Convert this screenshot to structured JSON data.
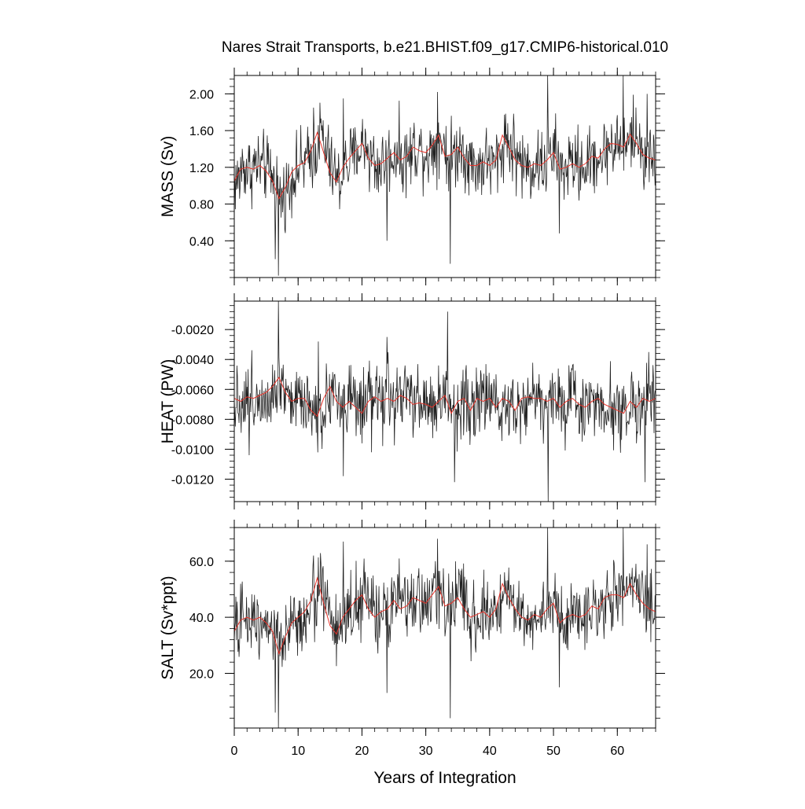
{
  "figure": {
    "title": "Nares Strait Transports, b.e21.BHIST.f09_g17.CMIP6-historical.010",
    "xlabel": "Years of Integration"
  },
  "colors": {
    "raw_line": "#222222",
    "smooth_line": "#e8332a",
    "axis": "#000000",
    "background": "#ffffff"
  },
  "chart_data": [
    {
      "type": "line",
      "panel": "mass",
      "title": "",
      "xlabel": "",
      "ylabel": "MASS (Sv)",
      "xlim": [
        0,
        66
      ],
      "ylim": [
        0,
        2.2
      ],
      "x_ticks": [
        0,
        10,
        20,
        30,
        40,
        50,
        60
      ],
      "x_tick_labels": [
        "",
        "",
        "",
        "",
        "",
        "",
        ""
      ],
      "y_ticks": [
        0.4,
        0.8,
        1.2,
        1.6,
        2.0
      ],
      "y_tick_labels": [
        "0.40",
        "0.80",
        "1.20",
        "1.60",
        "2.00"
      ],
      "monthly": {
        "start_year": 0,
        "step_years": 0.0833333,
        "base": [
          1.05,
          1.2,
          1.18,
          1.22,
          1.2,
          1.15,
          1.05,
          0.88,
          0.98,
          1.15,
          1.22,
          1.26,
          1.35,
          1.55,
          1.35,
          1.15,
          1.05,
          1.22,
          1.3,
          1.4,
          1.45,
          1.3,
          1.2,
          1.25,
          1.3,
          1.38,
          1.28,
          1.32,
          1.42,
          1.38,
          1.36,
          1.45,
          1.52,
          1.32,
          1.35,
          1.42,
          1.32,
          1.22,
          1.22,
          1.28,
          1.22,
          1.3,
          1.52,
          1.42,
          1.3,
          1.22,
          1.2,
          1.25,
          1.22,
          1.3,
          1.35,
          1.18,
          1.22,
          1.25,
          1.2,
          1.24,
          1.32,
          1.3,
          1.42,
          1.45,
          1.44,
          1.42,
          1.55,
          1.45,
          1.32,
          1.3
        ],
        "amplitude": 0.28,
        "spikes": [
          [
            6.4,
            0.2
          ],
          [
            6.9,
            0.02
          ],
          [
            12.4,
            1.85
          ],
          [
            17.1,
            1.95
          ],
          [
            23.9,
            0.4
          ],
          [
            31.8,
            2.02
          ],
          [
            33.8,
            0.15
          ],
          [
            49.1,
            2.2
          ],
          [
            50.9,
            0.48
          ],
          [
            60.9,
            2.2
          ],
          [
            64.7,
            2.0
          ]
        ]
      },
      "smooth": {
        "x": [
          0,
          1,
          2,
          3,
          4,
          5,
          6,
          7,
          8,
          9,
          10,
          11,
          12,
          13,
          14,
          15,
          16,
          17,
          18,
          19,
          20,
          21,
          22,
          23,
          24,
          25,
          26,
          27,
          28,
          29,
          30,
          31,
          32,
          33,
          34,
          35,
          36,
          37,
          38,
          39,
          40,
          41,
          42,
          43,
          44,
          45,
          46,
          47,
          48,
          49,
          50,
          51,
          52,
          53,
          54,
          55,
          56,
          57,
          58,
          59,
          60,
          61,
          62,
          63,
          64,
          65,
          66
        ],
        "y": [
          1.05,
          1.18,
          1.2,
          1.18,
          1.22,
          1.16,
          1.05,
          0.86,
          0.98,
          1.15,
          1.22,
          1.25,
          1.38,
          1.58,
          1.36,
          1.14,
          1.04,
          1.2,
          1.3,
          1.38,
          1.46,
          1.3,
          1.22,
          1.24,
          1.3,
          1.36,
          1.28,
          1.32,
          1.42,
          1.38,
          1.36,
          1.44,
          1.55,
          1.32,
          1.34,
          1.42,
          1.3,
          1.22,
          1.22,
          1.26,
          1.22,
          1.28,
          1.55,
          1.42,
          1.28,
          1.22,
          1.2,
          1.24,
          1.22,
          1.28,
          1.36,
          1.18,
          1.2,
          1.24,
          1.2,
          1.24,
          1.32,
          1.3,
          1.4,
          1.46,
          1.45,
          1.42,
          1.56,
          1.46,
          1.34,
          1.3,
          1.28
        ]
      }
    },
    {
      "type": "line",
      "panel": "heat",
      "title": "",
      "xlabel": "",
      "ylabel": "HEAT (PW)",
      "xlim": [
        0,
        66
      ],
      "ylim": [
        -0.0135,
        -0.0001
      ],
      "x_ticks": [
        0,
        10,
        20,
        30,
        40,
        50,
        60
      ],
      "x_tick_labels": [
        "",
        "",
        "",
        "",
        "",
        "",
        ""
      ],
      "y_ticks": [
        -0.012,
        -0.01,
        -0.008,
        -0.006,
        -0.004,
        -0.002
      ],
      "y_tick_labels": [
        "-0.0120",
        "-0.0100",
        "-0.0080",
        "-0.0060",
        "-0.0040",
        "-0.0020"
      ],
      "monthly": {
        "start_year": 0,
        "step_years": 0.0833333,
        "base": [
          -0.0066,
          -0.0068,
          -0.0065,
          -0.0066,
          -0.0064,
          -0.0062,
          -0.0058,
          -0.0052,
          -0.0062,
          -0.0068,
          -0.0066,
          -0.0066,
          -0.0074,
          -0.0078,
          -0.0066,
          -0.0058,
          -0.0068,
          -0.0072,
          -0.0068,
          -0.0072,
          -0.0076,
          -0.0068,
          -0.0065,
          -0.0068,
          -0.0066,
          -0.0068,
          -0.0064,
          -0.0066,
          -0.007,
          -0.0069,
          -0.007,
          -0.0072,
          -0.0068,
          -0.0064,
          -0.0076,
          -0.0068,
          -0.0066,
          -0.0074,
          -0.0066,
          -0.0068,
          -0.0066,
          -0.0072,
          -0.0066,
          -0.0068,
          -0.0074,
          -0.0066,
          -0.0065,
          -0.0066,
          -0.0066,
          -0.0068,
          -0.0066,
          -0.0072,
          -0.0068,
          -0.0066,
          -0.007,
          -0.0072,
          -0.0068,
          -0.0066,
          -0.007,
          -0.0072,
          -0.0074,
          -0.0076,
          -0.0068,
          -0.0072,
          -0.0066,
          -0.0068
        ],
        "amplitude": 0.0018,
        "spikes": [
          [
            6.9,
            -0.0001
          ],
          [
            13.2,
            -0.0028
          ],
          [
            17.1,
            -0.0118
          ],
          [
            23.9,
            -0.0025
          ],
          [
            33.4,
            -0.0008
          ],
          [
            34.5,
            -0.0122
          ],
          [
            49.2,
            -0.0135
          ],
          [
            64.3,
            -0.0122
          ],
          [
            2.3,
            -0.0104
          ],
          [
            21.5,
            -0.0102
          ]
        ]
      },
      "smooth": {
        "x": [
          0,
          1,
          2,
          3,
          4,
          5,
          6,
          7,
          8,
          9,
          10,
          11,
          12,
          13,
          14,
          15,
          16,
          17,
          18,
          19,
          20,
          21,
          22,
          23,
          24,
          25,
          26,
          27,
          28,
          29,
          30,
          31,
          32,
          33,
          34,
          35,
          36,
          37,
          38,
          39,
          40,
          41,
          42,
          43,
          44,
          45,
          46,
          47,
          48,
          49,
          50,
          51,
          52,
          53,
          54,
          55,
          56,
          57,
          58,
          59,
          60,
          61,
          62,
          63,
          64,
          65,
          66
        ],
        "y": [
          -0.0066,
          -0.0068,
          -0.0065,
          -0.0066,
          -0.0064,
          -0.0062,
          -0.0058,
          -0.0052,
          -0.0062,
          -0.0068,
          -0.0066,
          -0.0066,
          -0.0074,
          -0.0078,
          -0.0066,
          -0.0058,
          -0.0068,
          -0.0072,
          -0.0068,
          -0.0072,
          -0.0076,
          -0.0068,
          -0.0065,
          -0.0068,
          -0.0066,
          -0.0068,
          -0.0064,
          -0.0066,
          -0.007,
          -0.0069,
          -0.007,
          -0.0072,
          -0.0068,
          -0.0064,
          -0.0076,
          -0.0068,
          -0.0066,
          -0.0074,
          -0.0066,
          -0.0068,
          -0.0066,
          -0.0072,
          -0.0066,
          -0.0068,
          -0.0074,
          -0.0066,
          -0.0065,
          -0.0066,
          -0.0066,
          -0.0068,
          -0.0066,
          -0.0072,
          -0.0068,
          -0.0066,
          -0.007,
          -0.0072,
          -0.0068,
          -0.0066,
          -0.007,
          -0.0072,
          -0.0074,
          -0.0076,
          -0.0068,
          -0.0072,
          -0.0066,
          -0.0068,
          -0.0066
        ]
      }
    },
    {
      "type": "line",
      "panel": "salt",
      "title": "",
      "xlabel": "Years of Integration",
      "ylabel": "SALT (Sv*ppt)",
      "xlim": [
        0,
        66
      ],
      "ylim": [
        0.5,
        72
      ],
      "x_ticks": [
        0,
        10,
        20,
        30,
        40,
        50,
        60
      ],
      "x_tick_labels": [
        "0",
        "10",
        "20",
        "30",
        "40",
        "50",
        "60"
      ],
      "y_ticks": [
        20,
        40,
        60
      ],
      "y_tick_labels": [
        "20.0",
        "40.0",
        "60.0"
      ],
      "monthly": {
        "start_year": 0,
        "step_years": 0.0833333,
        "base": [
          35,
          40,
          39,
          40,
          39,
          38,
          35,
          28,
          33,
          38,
          40,
          42,
          45,
          52,
          45,
          38,
          35,
          41,
          43,
          46,
          48,
          43,
          40,
          42,
          43,
          46,
          43,
          44,
          47,
          46,
          45,
          48,
          50,
          44,
          45,
          47,
          44,
          40,
          41,
          42,
          40,
          43,
          50,
          47,
          43,
          40,
          40,
          41,
          40,
          43,
          45,
          39,
          40,
          41,
          40,
          41,
          44,
          43,
          47,
          48,
          48,
          47,
          52,
          48,
          44,
          43
        ],
        "amplitude": 9,
        "spikes": [
          [
            6.4,
            6
          ],
          [
            6.9,
            0.5
          ],
          [
            12.4,
            62
          ],
          [
            17.1,
            67
          ],
          [
            23.9,
            13
          ],
          [
            31.8,
            68
          ],
          [
            33.8,
            4
          ],
          [
            49.1,
            72
          ],
          [
            50.9,
            15
          ],
          [
            60.9,
            72
          ],
          [
            64.7,
            66
          ]
        ]
      },
      "smooth": {
        "x": [
          0,
          1,
          2,
          3,
          4,
          5,
          6,
          7,
          8,
          9,
          10,
          11,
          12,
          13,
          14,
          15,
          16,
          17,
          18,
          19,
          20,
          21,
          22,
          23,
          24,
          25,
          26,
          27,
          28,
          29,
          30,
          31,
          32,
          33,
          34,
          35,
          36,
          37,
          38,
          39,
          40,
          41,
          42,
          43,
          44,
          45,
          46,
          47,
          48,
          49,
          50,
          51,
          52,
          53,
          54,
          55,
          56,
          57,
          58,
          59,
          60,
          61,
          62,
          63,
          64,
          65,
          66
        ],
        "y": [
          35,
          39,
          40,
          39,
          40,
          38,
          35,
          27,
          33,
          38,
          40,
          42,
          46,
          54,
          45,
          37,
          34,
          40,
          43,
          46,
          48,
          43,
          40,
          42,
          43,
          46,
          43,
          44,
          47,
          46,
          45,
          48,
          51,
          44,
          45,
          47,
          43,
          40,
          41,
          42,
          40,
          43,
          52,
          47,
          43,
          40,
          39,
          41,
          40,
          43,
          45,
          38,
          40,
          41,
          40,
          41,
          44,
          43,
          47,
          48,
          48,
          47,
          52,
          48,
          45,
          43,
          42
        ]
      }
    }
  ]
}
